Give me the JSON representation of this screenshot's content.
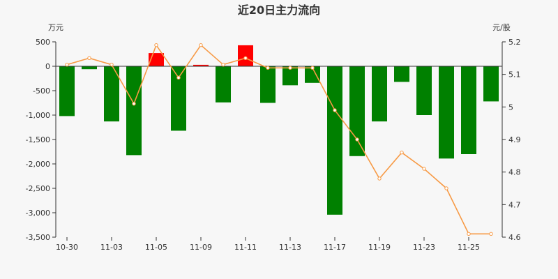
{
  "chart_data": {
    "type": "bar+line",
    "title": "近20日主力流向",
    "y_left_label": "万元",
    "y_right_label": "元/股",
    "y_left_range": [
      -3500,
      500
    ],
    "y_right_range": [
      4.6,
      5.2
    ],
    "y_left_ticks": [
      500,
      0,
      -500,
      -1000,
      -1500,
      -2000,
      -2500,
      -3000,
      -3500
    ],
    "y_left_tick_labels": [
      "500",
      "0",
      "-500",
      "-1,000",
      "-1,500",
      "-2,000",
      "-2,500",
      "-3,000",
      "-3,500"
    ],
    "y_right_ticks": [
      5.2,
      5.1,
      5.0,
      4.9,
      4.8,
      4.7,
      4.6
    ],
    "y_right_tick_labels": [
      "5.2",
      "5.1",
      "5",
      "4.9",
      "4.8",
      "4.7",
      "4.6"
    ],
    "x_tick_labels": [
      "10-30",
      "11-03",
      "11-05",
      "11-09",
      "11-11",
      "11-13",
      "11-17",
      "11-19",
      "11-23",
      "11-25"
    ],
    "x_tick_indices": [
      0,
      2,
      4,
      6,
      8,
      10,
      12,
      14,
      16,
      18
    ],
    "series": [
      {
        "name": "main-flow",
        "type": "bar",
        "axis": "left",
        "values": [
          -1020,
          -60,
          -1130,
          -1820,
          270,
          -1320,
          30,
          -740,
          430,
          -750,
          -390,
          -340,
          -3040,
          -1840,
          -1130,
          -320,
          -1000,
          -1890,
          -1800,
          -720
        ]
      },
      {
        "name": "price",
        "type": "line",
        "axis": "right",
        "values": [
          5.13,
          5.15,
          5.13,
          5.01,
          5.19,
          5.09,
          5.19,
          5.13,
          5.15,
          5.12,
          5.12,
          5.12,
          4.99,
          4.9,
          4.78,
          4.86,
          4.81,
          4.75,
          4.61,
          4.61
        ]
      }
    ],
    "colors": {
      "positive": "#ff0000",
      "negative": "#008000",
      "line": "#f79a45",
      "axis": "#333333",
      "background": "#f7f7f7"
    }
  }
}
